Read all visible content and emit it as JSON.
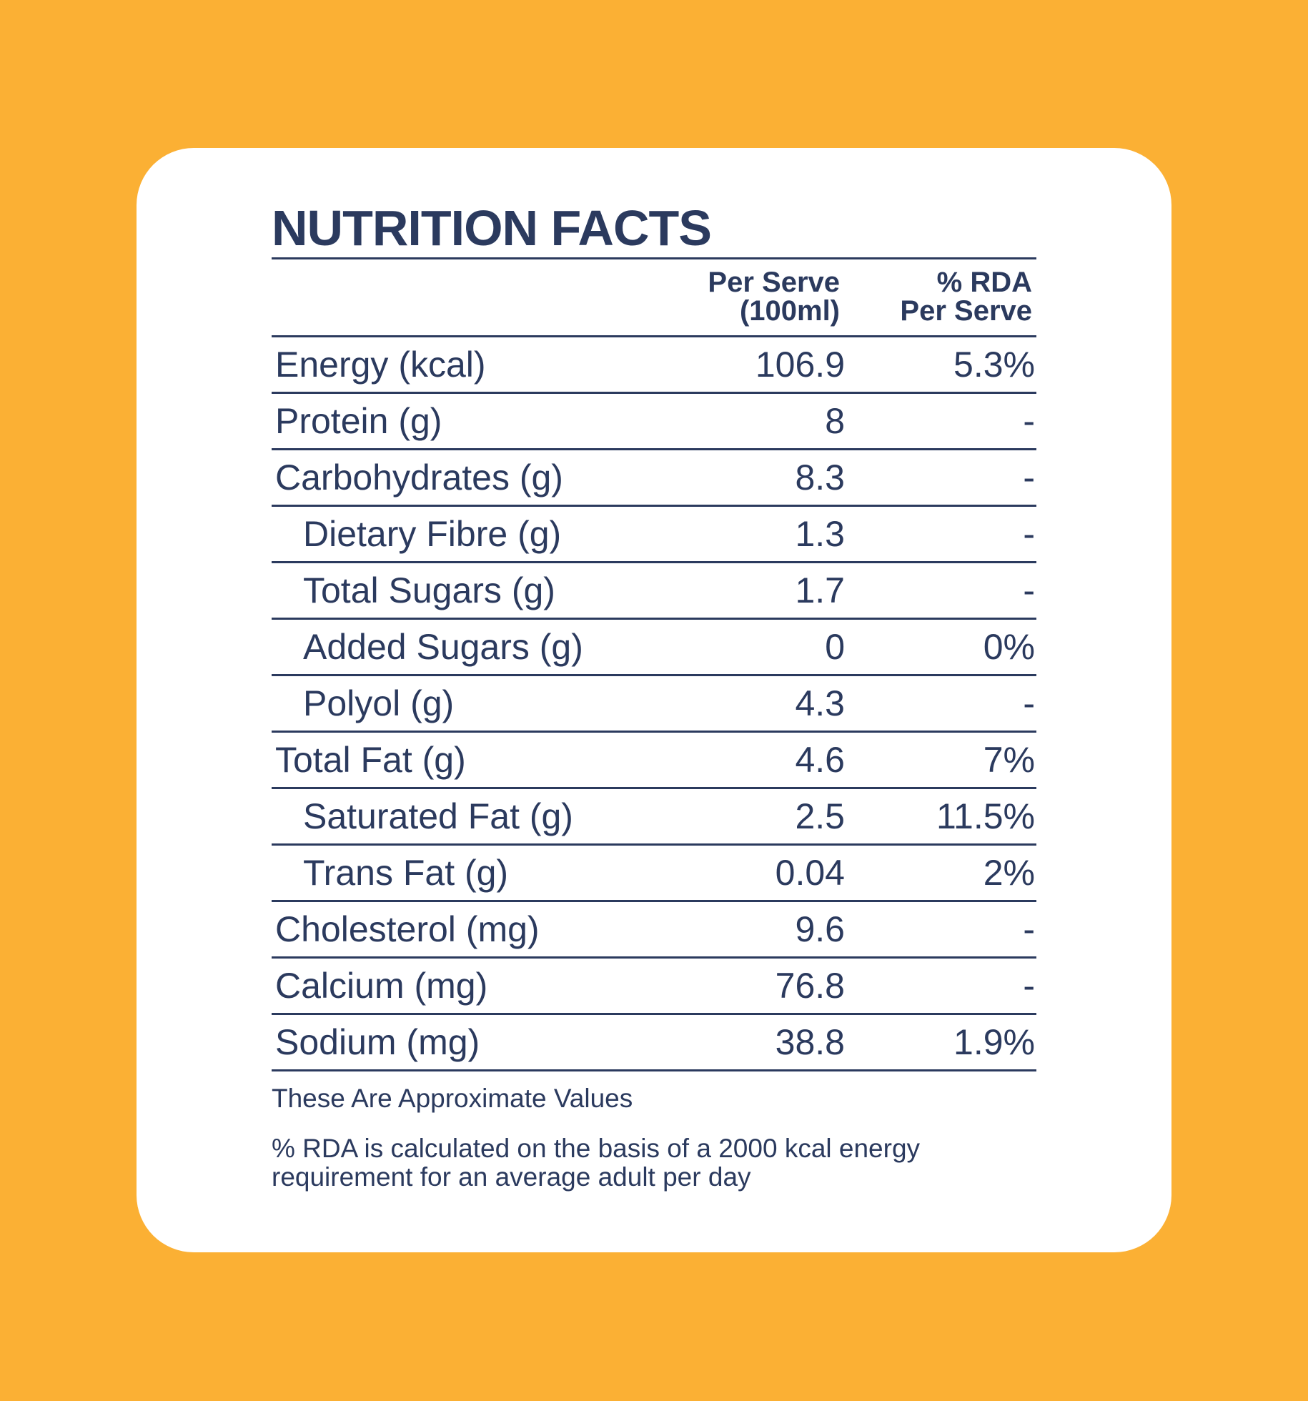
{
  "title": "NUTRITION FACTS",
  "columns": {
    "per_serve_line1": "Per Serve",
    "per_serve_line2": "(100ml)",
    "rda_line1": "% RDA",
    "rda_line2": "Per Serve"
  },
  "rows": [
    {
      "name": "Energy (kcal)",
      "value": "106.9",
      "rda": "5.3%"
    },
    {
      "name": "Protein (g)",
      "value": "8",
      "rda": "-"
    },
    {
      "name": "Carbohydrates (g)",
      "value": "8.3",
      "rda": "-"
    },
    {
      "name": "Dietary Fibre (g)",
      "value": "1.3",
      "rda": "-"
    },
    {
      "name": "Total Sugars (g)",
      "value": "1.7",
      "rda": "-"
    },
    {
      "name": "Added Sugars (g)",
      "value": "0",
      "rda": "0%"
    },
    {
      "name": "Polyol (g)",
      "value": "4.3",
      "rda": "-"
    },
    {
      "name": "Total Fat (g)",
      "value": "4.6",
      "rda": "7%"
    },
    {
      "name": "Saturated Fat (g)",
      "value": "2.5",
      "rda": "11.5%"
    },
    {
      "name": "Trans Fat (g)",
      "value": "0.04",
      "rda": "2%"
    },
    {
      "name": "Cholesterol (mg)",
      "value": "9.6",
      "rda": "-"
    },
    {
      "name": "Calcium (mg)",
      "value": "76.8",
      "rda": "-"
    },
    {
      "name": "Sodium (mg)",
      "value": "38.8",
      "rda": "1.9%"
    }
  ],
  "note_approx": "These Are Approximate Values",
  "note_rda": "% RDA is calculated on the basis of a 2000 kcal energy requirement for an average adult per day",
  "colors": {
    "background": "#fbb034",
    "card": "#ffffff",
    "text": "#2b3a5e"
  }
}
